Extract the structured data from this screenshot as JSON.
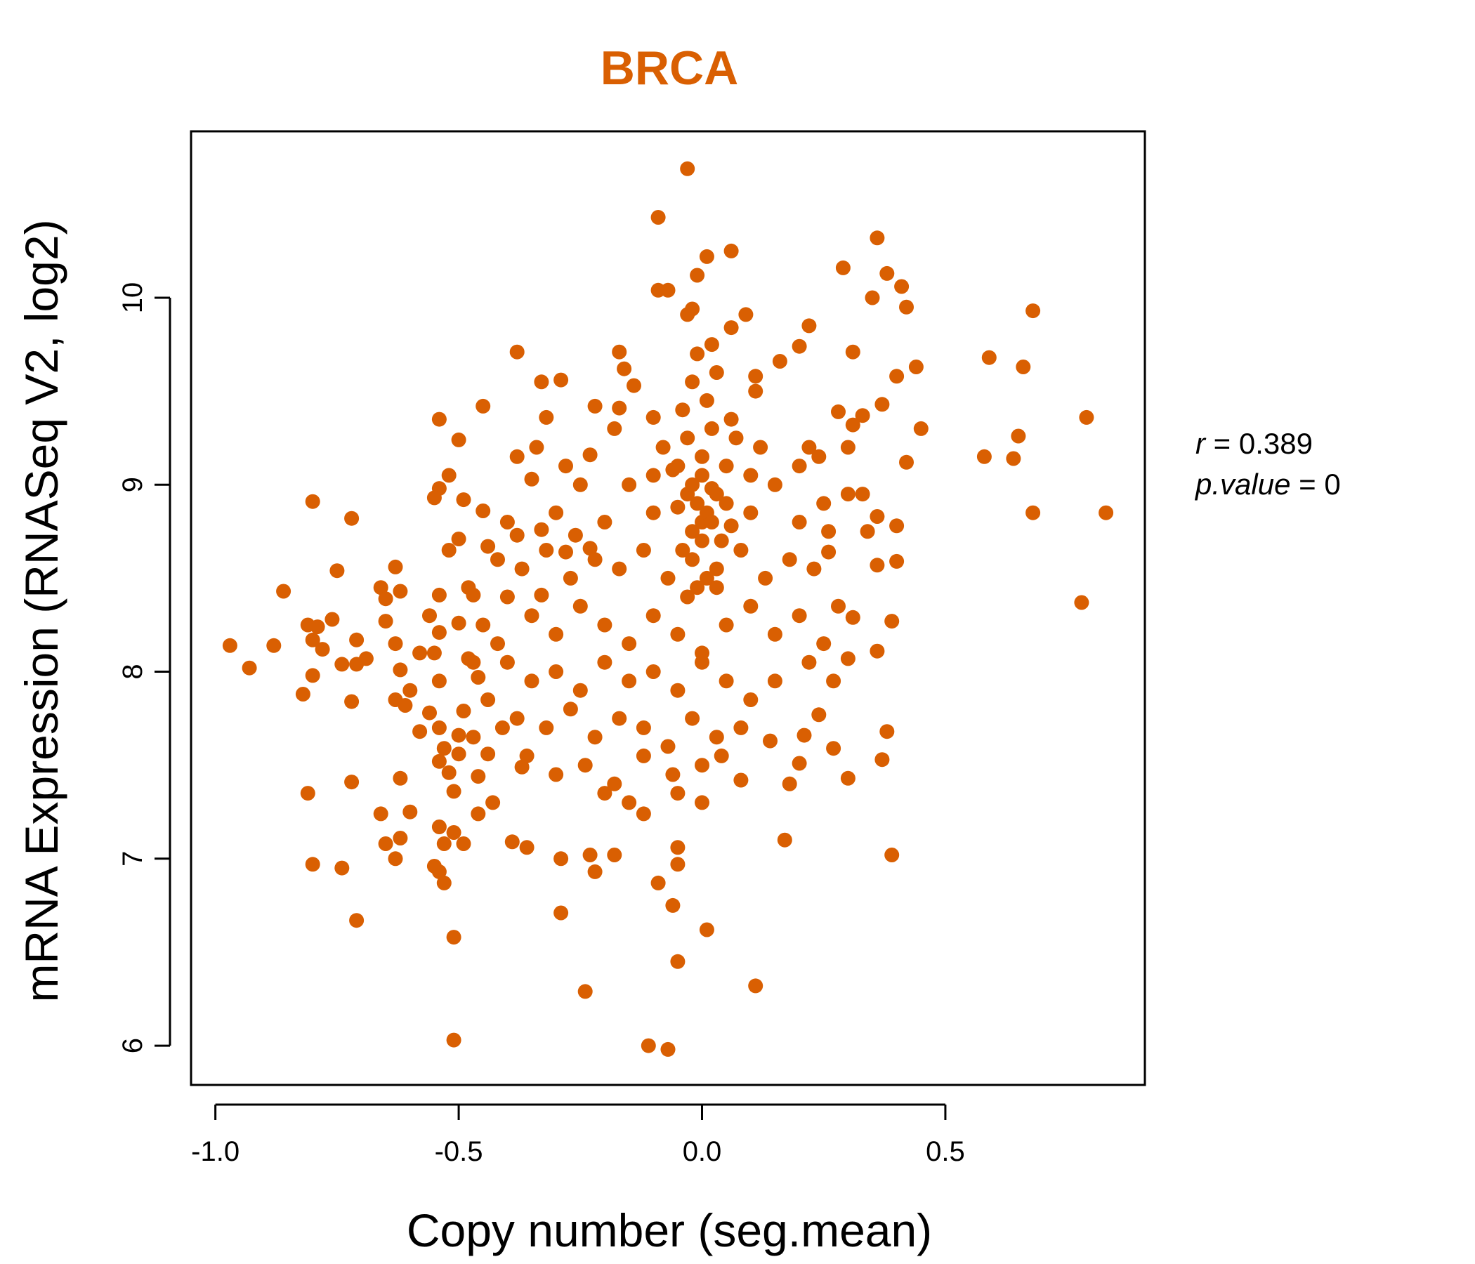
{
  "chart_data": {
    "type": "scatter",
    "title": "BRCA",
    "xlabel": "Copy number (seg.mean)",
    "ylabel": "mRNA Expression (RNASeq V2, log2)",
    "xlim": [
      -1.05,
      0.91
    ],
    "ylim": [
      5.79,
      10.89
    ],
    "x_ticks": [
      -1.0,
      -0.5,
      0.0,
      0.5
    ],
    "x_tick_labels": [
      "-1.0",
      "-0.5",
      "0.0",
      "0.5"
    ],
    "y_ticks": [
      6,
      7,
      8,
      9,
      10
    ],
    "y_tick_labels": [
      "6",
      "7",
      "8",
      "9",
      "10"
    ],
    "point_color": "#D95F02",
    "grid": false,
    "legend": "none",
    "annotations": {
      "r_label": "r",
      "r_value": "0.389",
      "p_label": "p.value",
      "p_value": "0"
    },
    "points": [
      [
        -0.03,
        10.69
      ],
      [
        -0.09,
        10.43
      ],
      [
        0.36,
        10.32
      ],
      [
        0.06,
        10.25
      ],
      [
        0.01,
        10.22
      ],
      [
        0.29,
        10.16
      ],
      [
        0.38,
        10.13
      ],
      [
        -0.01,
        10.12
      ],
      [
        0.41,
        10.06
      ],
      [
        -0.09,
        10.04
      ],
      [
        -0.07,
        10.04
      ],
      [
        0.35,
        10.0
      ],
      [
        0.42,
        9.95
      ],
      [
        0.68,
        9.93
      ],
      [
        -0.02,
        9.94
      ],
      [
        -0.03,
        9.91
      ],
      [
        0.09,
        9.91
      ],
      [
        0.22,
        9.85
      ],
      [
        0.06,
        9.84
      ],
      [
        0.2,
        9.74
      ],
      [
        0.31,
        9.71
      ],
      [
        -0.17,
        9.71
      ],
      [
        -0.38,
        9.71
      ],
      [
        0.59,
        9.68
      ],
      [
        0.16,
        9.66
      ],
      [
        -0.16,
        9.62
      ],
      [
        0.66,
        9.63
      ],
      [
        0.44,
        9.63
      ],
      [
        0.4,
        9.58
      ],
      [
        0.11,
        9.58
      ],
      [
        -0.29,
        9.56
      ],
      [
        -0.33,
        9.55
      ],
      [
        -0.14,
        9.53
      ],
      [
        0.11,
        9.5
      ],
      [
        -0.45,
        9.42
      ],
      [
        -0.22,
        9.42
      ],
      [
        0.37,
        9.43
      ],
      [
        -0.17,
        9.41
      ],
      [
        0.79,
        9.36
      ],
      [
        -0.1,
        9.36
      ],
      [
        -0.54,
        9.35
      ],
      [
        -0.32,
        9.36
      ],
      [
        0.33,
        9.37
      ],
      [
        0.28,
        9.39
      ],
      [
        0.45,
        9.3
      ],
      [
        0.31,
        9.32
      ],
      [
        -0.18,
        9.3
      ],
      [
        -0.5,
        9.24
      ],
      [
        0.65,
        9.26
      ],
      [
        0.3,
        9.2
      ],
      [
        -0.34,
        9.2
      ],
      [
        0.22,
        9.2
      ],
      [
        0.58,
        9.15
      ],
      [
        0.64,
        9.14
      ],
      [
        -0.38,
        9.15
      ],
      [
        0.42,
        9.12
      ],
      [
        -0.23,
        9.16
      ],
      [
        -0.28,
        9.1
      ],
      [
        -0.52,
        9.05
      ],
      [
        -0.35,
        9.03
      ],
      [
        -0.25,
        9.0
      ],
      [
        -0.54,
        8.98
      ],
      [
        -0.8,
        8.91
      ],
      [
        0.33,
        8.95
      ],
      [
        -0.55,
        8.93
      ],
      [
        -0.49,
        8.92
      ],
      [
        -0.45,
        8.86
      ],
      [
        -0.72,
        8.82
      ],
      [
        0.68,
        8.85
      ],
      [
        0.83,
        8.85
      ],
      [
        0.36,
        8.83
      ],
      [
        0.4,
        8.78
      ],
      [
        -0.26,
        8.73
      ],
      [
        -0.33,
        8.76
      ],
      [
        -0.38,
        8.73
      ],
      [
        -0.5,
        8.71
      ],
      [
        -0.52,
        8.65
      ],
      [
        -0.44,
        8.67
      ],
      [
        0.34,
        8.75
      ],
      [
        -0.28,
        8.64
      ],
      [
        -0.23,
        8.66
      ],
      [
        -0.63,
        8.56
      ],
      [
        -0.75,
        8.54
      ],
      [
        0.4,
        8.59
      ],
      [
        0.36,
        8.57
      ],
      [
        0.26,
        8.64
      ],
      [
        -0.66,
        8.45
      ],
      [
        -0.86,
        8.43
      ],
      [
        -0.62,
        8.43
      ],
      [
        -0.65,
        8.39
      ],
      [
        -0.54,
        8.41
      ],
      [
        -0.47,
        8.41
      ],
      [
        -0.33,
        8.41
      ],
      [
        0.78,
        8.37
      ],
      [
        -0.81,
        8.25
      ],
      [
        -0.79,
        8.24
      ],
      [
        -0.76,
        8.28
      ],
      [
        -0.65,
        8.27
      ],
      [
        -0.54,
        8.21
      ],
      [
        -0.5,
        8.26
      ],
      [
        0.31,
        8.29
      ],
      [
        0.39,
        8.27
      ],
      [
        -0.97,
        8.14
      ],
      [
        -0.88,
        8.14
      ],
      [
        -0.8,
        8.17
      ],
      [
        -0.78,
        8.12
      ],
      [
        -0.71,
        8.17
      ],
      [
        -0.63,
        8.15
      ],
      [
        -0.55,
        8.1
      ],
      [
        -0.48,
        8.07
      ],
      [
        0.36,
        8.11
      ],
      [
        0.3,
        8.07
      ],
      [
        -0.93,
        8.02
      ],
      [
        -0.74,
        8.04
      ],
      [
        -0.71,
        8.04
      ],
      [
        -0.69,
        8.07
      ],
      [
        -0.62,
        8.01
      ],
      [
        -0.8,
        7.98
      ],
      [
        -0.54,
        7.95
      ],
      [
        -0.46,
        7.97
      ],
      [
        0.27,
        7.95
      ],
      [
        -0.82,
        7.88
      ],
      [
        -0.72,
        7.84
      ],
      [
        -0.63,
        7.85
      ],
      [
        -0.61,
        7.82
      ],
      [
        -0.56,
        7.78
      ],
      [
        -0.49,
        7.79
      ],
      [
        0.24,
        7.77
      ],
      [
        -0.54,
        7.7
      ],
      [
        -0.58,
        7.68
      ],
      [
        -0.5,
        7.66
      ],
      [
        -0.47,
        7.65
      ],
      [
        0.21,
        7.66
      ],
      [
        0.38,
        7.68
      ],
      [
        -0.53,
        7.59
      ],
      [
        -0.5,
        7.56
      ],
      [
        -0.44,
        7.56
      ],
      [
        0.27,
        7.59
      ],
      [
        0.14,
        7.63
      ],
      [
        -0.54,
        7.52
      ],
      [
        -0.52,
        7.46
      ],
      [
        -0.46,
        7.44
      ],
      [
        -0.37,
        7.49
      ],
      [
        0.2,
        7.51
      ],
      [
        0.37,
        7.53
      ],
      [
        -0.81,
        7.35
      ],
      [
        -0.72,
        7.41
      ],
      [
        -0.62,
        7.43
      ],
      [
        -0.51,
        7.36
      ],
      [
        -0.43,
        7.3
      ],
      [
        0.3,
        7.43
      ],
      [
        0.18,
        7.4
      ],
      [
        0.08,
        7.42
      ],
      [
        -0.66,
        7.24
      ],
      [
        -0.6,
        7.25
      ],
      [
        -0.46,
        7.24
      ],
      [
        -0.12,
        7.24
      ],
      [
        -0.54,
        7.17
      ],
      [
        -0.51,
        7.14
      ],
      [
        -0.62,
        7.11
      ],
      [
        -0.65,
        7.08
      ],
      [
        -0.53,
        7.08
      ],
      [
        -0.49,
        7.08
      ],
      [
        0.17,
        7.1
      ],
      [
        -0.39,
        7.09
      ],
      [
        -0.36,
        7.06
      ],
      [
        -0.05,
        7.06
      ],
      [
        -0.63,
        7.0
      ],
      [
        -0.55,
        6.96
      ],
      [
        -0.54,
        6.93
      ],
      [
        -0.29,
        7.0
      ],
      [
        -0.23,
        7.02
      ],
      [
        -0.18,
        7.02
      ],
      [
        0.39,
        7.02
      ],
      [
        -0.8,
        6.97
      ],
      [
        -0.74,
        6.95
      ],
      [
        -0.22,
        6.93
      ],
      [
        -0.05,
        6.97
      ],
      [
        -0.53,
        6.87
      ],
      [
        -0.09,
        6.87
      ],
      [
        -0.06,
        6.75
      ],
      [
        -0.29,
        6.71
      ],
      [
        -0.71,
        6.67
      ],
      [
        0.01,
        6.62
      ],
      [
        -0.51,
        6.58
      ],
      [
        -0.05,
        6.45
      ],
      [
        0.11,
        6.32
      ],
      [
        -0.24,
        6.29
      ],
      [
        -0.51,
        6.03
      ],
      [
        -0.11,
        6.0
      ],
      [
        -0.07,
        5.98
      ],
      [
        -0.4,
        8.4
      ],
      [
        -0.35,
        8.3
      ],
      [
        -0.3,
        8.2
      ],
      [
        -0.25,
        8.35
      ],
      [
        -0.2,
        8.25
      ],
      [
        -0.15,
        8.15
      ],
      [
        -0.1,
        8.3
      ],
      [
        -0.05,
        8.2
      ],
      [
        0.0,
        8.1
      ],
      [
        0.05,
        8.25
      ],
      [
        0.1,
        8.35
      ],
      [
        0.15,
        8.2
      ],
      [
        0.2,
        8.3
      ],
      [
        -0.4,
        8.05
      ],
      [
        -0.35,
        7.95
      ],
      [
        -0.3,
        8.0
      ],
      [
        -0.25,
        7.9
      ],
      [
        -0.2,
        8.05
      ],
      [
        -0.15,
        7.95
      ],
      [
        -0.1,
        8.0
      ],
      [
        -0.05,
        7.9
      ],
      [
        0.0,
        8.05
      ],
      [
        0.05,
        7.95
      ],
      [
        0.1,
        7.85
      ],
      [
        0.15,
        7.95
      ],
      [
        -0.38,
        7.75
      ],
      [
        -0.32,
        7.7
      ],
      [
        -0.27,
        7.8
      ],
      [
        -0.22,
        7.65
      ],
      [
        -0.17,
        7.75
      ],
      [
        -0.12,
        7.7
      ],
      [
        -0.07,
        7.6
      ],
      [
        -0.02,
        7.75
      ],
      [
        0.03,
        7.65
      ],
      [
        0.08,
        7.7
      ],
      [
        -0.36,
        7.55
      ],
      [
        -0.3,
        7.45
      ],
      [
        -0.24,
        7.5
      ],
      [
        -0.18,
        7.4
      ],
      [
        -0.12,
        7.55
      ],
      [
        -0.06,
        7.45
      ],
      [
        0.0,
        7.5
      ],
      [
        0.04,
        7.55
      ],
      [
        -0.2,
        7.35
      ],
      [
        -0.15,
        7.3
      ],
      [
        -0.05,
        7.35
      ],
      [
        0.0,
        7.3
      ],
      [
        -0.42,
        8.6
      ],
      [
        -0.37,
        8.55
      ],
      [
        -0.32,
        8.65
      ],
      [
        -0.27,
        8.5
      ],
      [
        -0.22,
        8.6
      ],
      [
        -0.17,
        8.55
      ],
      [
        -0.12,
        8.65
      ],
      [
        -0.07,
        8.5
      ],
      [
        -0.02,
        8.6
      ],
      [
        0.03,
        8.55
      ],
      [
        0.08,
        8.65
      ],
      [
        0.13,
        8.5
      ],
      [
        0.18,
        8.6
      ],
      [
        0.23,
        8.55
      ],
      [
        -0.4,
        8.8
      ],
      [
        -0.3,
        8.85
      ],
      [
        -0.2,
        8.8
      ],
      [
        -0.1,
        8.85
      ],
      [
        0.0,
        8.8
      ],
      [
        0.1,
        8.85
      ],
      [
        0.2,
        8.8
      ],
      [
        0.25,
        8.9
      ],
      [
        -0.15,
        9.0
      ],
      [
        -0.1,
        9.05
      ],
      [
        -0.05,
        9.1
      ],
      [
        0.0,
        9.15
      ],
      [
        0.05,
        9.1
      ],
      [
        0.1,
        9.05
      ],
      [
        0.15,
        9.0
      ],
      [
        0.2,
        9.1
      ],
      [
        -0.08,
        9.2
      ],
      [
        -0.03,
        9.25
      ],
      [
        0.02,
        9.3
      ],
      [
        0.07,
        9.25
      ],
      [
        0.12,
        9.2
      ],
      [
        -0.04,
        9.4
      ],
      [
        0.01,
        9.45
      ],
      [
        0.06,
        9.35
      ],
      [
        -0.02,
        9.55
      ],
      [
        0.03,
        9.6
      ],
      [
        -0.01,
        9.7
      ],
      [
        0.02,
        9.75
      ],
      [
        -0.03,
        8.95
      ],
      [
        -0.01,
        8.9
      ],
      [
        0.01,
        8.85
      ],
      [
        0.03,
        8.95
      ],
      [
        -0.02,
        8.75
      ],
      [
        0.0,
        8.7
      ],
      [
        0.02,
        8.8
      ],
      [
        -0.04,
        8.65
      ],
      [
        0.04,
        8.7
      ],
      [
        -0.01,
        8.45
      ],
      [
        0.01,
        8.5
      ],
      [
        -0.03,
        8.4
      ],
      [
        0.03,
        8.45
      ],
      [
        -0.02,
        9.0
      ],
      [
        0.0,
        9.05
      ],
      [
        0.02,
        8.98
      ],
      [
        -0.05,
        8.88
      ],
      [
        0.05,
        8.9
      ],
      [
        -0.06,
        9.08
      ],
      [
        0.06,
        8.78
      ],
      [
        -0.45,
        8.25
      ],
      [
        -0.42,
        8.15
      ],
      [
        -0.47,
        8.05
      ],
      [
        -0.44,
        7.85
      ],
      [
        -0.41,
        7.7
      ],
      [
        -0.48,
        8.45
      ],
      [
        0.25,
        8.15
      ],
      [
        0.28,
        8.35
      ],
      [
        0.22,
        8.05
      ],
      [
        0.26,
        8.75
      ],
      [
        0.3,
        8.95
      ],
      [
        0.24,
        9.15
      ],
      [
        -0.58,
        8.1
      ],
      [
        -0.6,
        7.9
      ],
      [
        -0.56,
        8.3
      ]
    ]
  }
}
